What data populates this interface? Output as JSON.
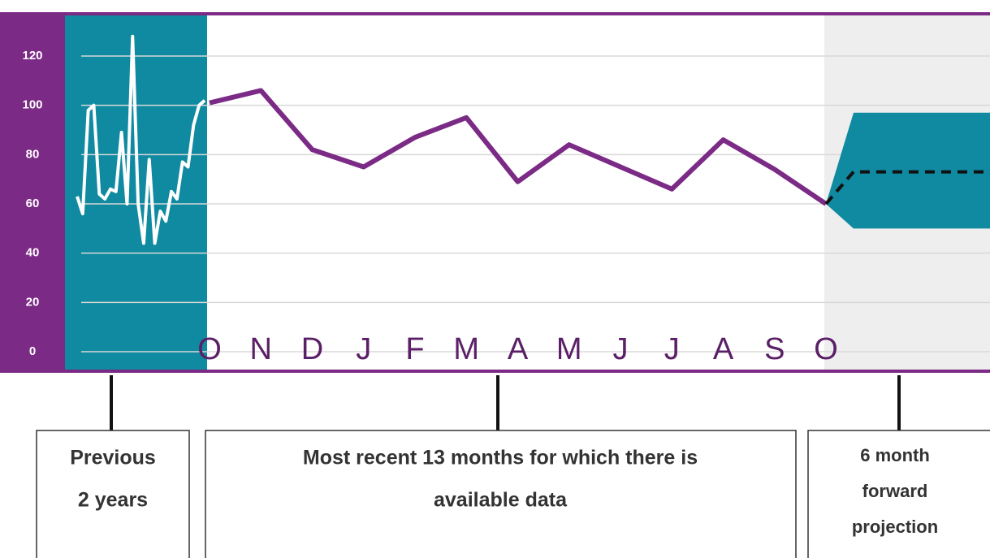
{
  "chart_data": {
    "type": "line",
    "categories": [
      "O",
      "N",
      "D",
      "J",
      "F",
      "M",
      "A",
      "M",
      "J",
      "J",
      "A",
      "S",
      "O"
    ],
    "ylim": [
      0,
      120
    ],
    "yticks": [
      0,
      20,
      40,
      60,
      80,
      100,
      120
    ],
    "grid": true,
    "recent": {
      "color": "#7b2a86",
      "values": [
        101,
        106,
        82,
        75,
        87,
        95,
        69,
        84,
        75,
        66,
        86,
        74,
        60
      ]
    },
    "previous": {
      "color": "#ffffff",
      "band_color": "#0f8aa0",
      "values": [
        63,
        56,
        98,
        100,
        64,
        62,
        66,
        65,
        89,
        60,
        128,
        60,
        44,
        78,
        44,
        57,
        53,
        65,
        62,
        77,
        75,
        92,
        100,
        102
      ]
    },
    "projection": {
      "color": "#111111",
      "band_color": "#0f8aa0",
      "values": [
        60,
        73,
        73,
        73,
        73,
        73,
        73
      ],
      "upper": [
        60,
        97,
        97,
        97,
        97,
        97,
        97
      ],
      "lower": [
        60,
        50,
        50,
        50,
        50,
        50,
        50
      ]
    },
    "annotations": [
      {
        "lines": [
          "Previous",
          "2 years"
        ]
      },
      {
        "lines": [
          "Most recent 13 months for which there is",
          "available data"
        ]
      },
      {
        "lines": [
          "6 month",
          "forward",
          "projection"
        ]
      }
    ]
  }
}
